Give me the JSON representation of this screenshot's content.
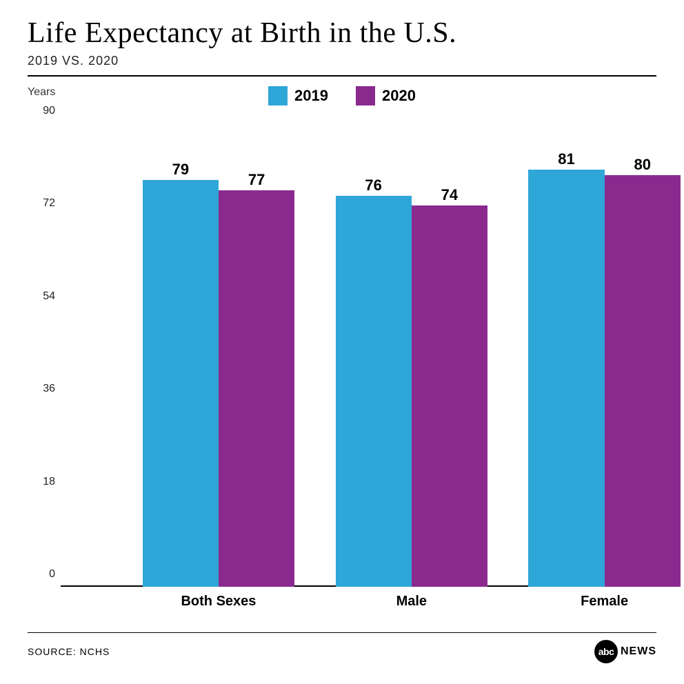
{
  "title": "Life Expectancy at Birth in the U.S.",
  "subtitle": "2019 VS. 2020",
  "y_axis_label": "Years",
  "source": "SOURCE: NCHS",
  "logo": {
    "abbr": "abc",
    "text": "NEWS"
  },
  "chart": {
    "type": "bar",
    "categories": [
      "Both Sexes",
      "Male",
      "Female"
    ],
    "series": [
      {
        "name": "2019",
        "color": "#2fa6d8",
        "values": [
          79,
          76,
          81
        ]
      },
      {
        "name": "2020",
        "color": "#8a2a8f",
        "values": [
          77,
          74,
          80
        ]
      }
    ],
    "ylim": [
      0,
      90
    ],
    "ytick_step": 18,
    "background_color": "#ffffff",
    "label_fontsize": 22,
    "tick_fontsize": 16,
    "category_fontsize": 20,
    "bar_group_width_pct": 26,
    "bar_width_pct": 13,
    "group_positions_pct": [
      14,
      47,
      80
    ]
  }
}
